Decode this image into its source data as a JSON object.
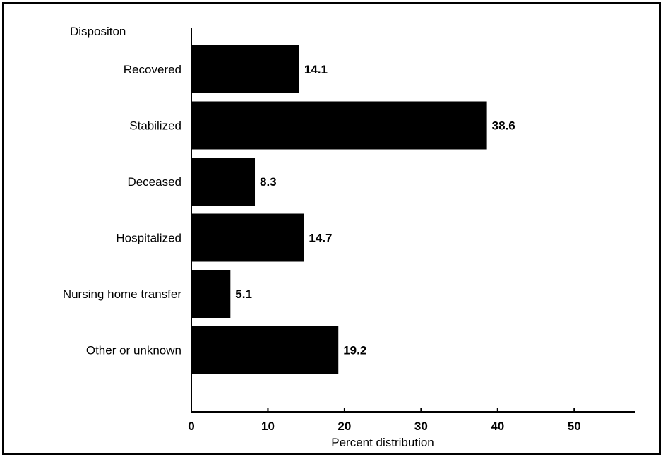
{
  "chart_data": {
    "type": "bar",
    "orientation": "horizontal",
    "category_header": "Dispositon",
    "categories": [
      "Recovered",
      "Stabilized",
      "Deceased",
      "Hospitalized",
      "Nursing home transfer",
      "Other or unknown"
    ],
    "values": [
      14.1,
      38.6,
      8.3,
      14.7,
      5.1,
      19.2
    ],
    "value_labels": [
      "14.1",
      "38.6",
      "8.3",
      "14.7",
      "5.1",
      "19.2"
    ],
    "xlabel": "Percent distribution",
    "xlim": [
      0,
      58
    ],
    "xticks": [
      0,
      10,
      20,
      30,
      40,
      50
    ],
    "grid": false,
    "legend": "none",
    "bar_color": "#000000"
  }
}
